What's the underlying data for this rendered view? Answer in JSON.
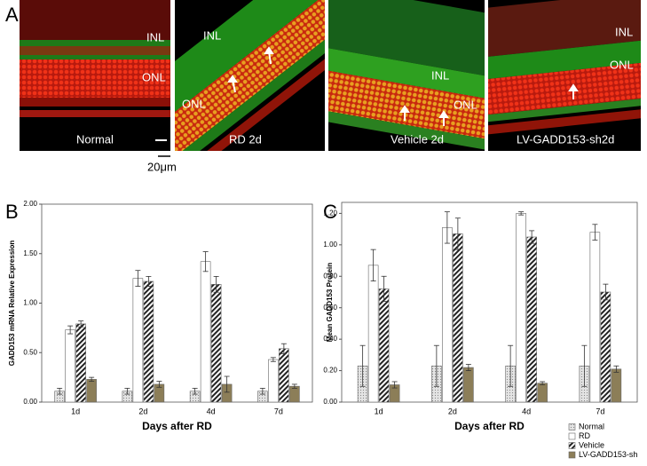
{
  "panel_a": {
    "label": "A",
    "images": [
      {
        "inl": "INL",
        "onl": "ONL",
        "caption": "Normal"
      },
      {
        "inl": "INL",
        "onl": "ONL",
        "caption": "RD 2d"
      },
      {
        "inl": "INL",
        "onl": "ONL",
        "caption": "Vehicle 2d"
      },
      {
        "inl": "INL",
        "onl": "ONL",
        "caption": "LV-GADD153-sh2d"
      }
    ],
    "scale": "20μm"
  },
  "chart_data": [
    {
      "type": "bar",
      "panel": "B",
      "y_label": "GADD153 mRNA Relative Expression",
      "x_label": "Days after RD",
      "categories": [
        "1d",
        "2d",
        "4d",
        "7d"
      ],
      "ylim": [
        0,
        2.0
      ],
      "yticks": [
        {
          "value": 0,
          "label": "0.00"
        },
        {
          "value": 0.5,
          "label": "0.50"
        },
        {
          "value": 1.0,
          "label": "1.00"
        },
        {
          "value": 1.5,
          "label": "1.50"
        },
        {
          "value": 2.0,
          "label": "2.00"
        }
      ],
      "legend": false,
      "series": [
        {
          "color": "#dcdcdc",
          "pattern": "dots",
          "values": [
            0.11,
            0.11,
            0.11,
            0.11
          ],
          "errors": [
            0.03,
            0.03,
            0.03,
            0.03
          ]
        },
        {
          "color": "#ffffff",
          "pattern": "none",
          "values": [
            0.73,
            1.25,
            1.42,
            0.43
          ],
          "errors": [
            0.04,
            0.08,
            0.1,
            0.02
          ]
        },
        {
          "color": "#ffffff",
          "pattern": "hatch",
          "values": [
            0.79,
            1.22,
            1.19,
            0.54
          ],
          "errors": [
            0.03,
            0.05,
            0.08,
            0.05
          ]
        },
        {
          "color": "#8c7e58",
          "pattern": "none",
          "values": [
            0.23,
            0.18,
            0.18,
            0.16
          ],
          "errors": [
            0.02,
            0.03,
            0.08,
            0.02
          ]
        }
      ]
    },
    {
      "type": "bar",
      "panel": "C",
      "y_label": "Mean GADD153 Protein",
      "x_label": "Days after RD",
      "categories": [
        "1d",
        "2d",
        "4d",
        "7d"
      ],
      "ylim": [
        0,
        1.27
      ],
      "yticks": [
        {
          "value": 0,
          "label": "0.00"
        },
        {
          "value": 0.2,
          "label": "0.20"
        },
        {
          "value": 0.4,
          "label": "0.40"
        },
        {
          "value": 0.6,
          "label": "0.60"
        },
        {
          "value": 0.8,
          "label": "0.80"
        },
        {
          "value": 1.0,
          "label": "1.00"
        },
        {
          "value": 1.2,
          "label": "1.20"
        }
      ],
      "legend": true,
      "series": [
        {
          "name": "Normal",
          "color": "#dcdcdc",
          "pattern": "dots",
          "values": [
            0.23,
            0.23,
            0.23,
            0.23
          ],
          "errors": [
            0.13,
            0.13,
            0.13,
            0.13
          ]
        },
        {
          "name": "RD",
          "color": "#ffffff",
          "pattern": "none",
          "values": [
            0.87,
            1.11,
            1.2,
            1.08
          ],
          "errors": [
            0.1,
            0.1,
            0.01,
            0.05
          ]
        },
        {
          "name": "Vehicle",
          "color": "#ffffff",
          "pattern": "hatch",
          "values": [
            0.72,
            1.07,
            1.05,
            0.7
          ],
          "errors": [
            0.08,
            0.1,
            0.04,
            0.05
          ]
        },
        {
          "name": "LV-GADD153-sh",
          "color": "#8c7e58",
          "pattern": "none",
          "values": [
            0.11,
            0.22,
            0.12,
            0.21
          ],
          "errors": [
            0.02,
            0.02,
            0.01,
            0.02
          ]
        }
      ]
    }
  ]
}
